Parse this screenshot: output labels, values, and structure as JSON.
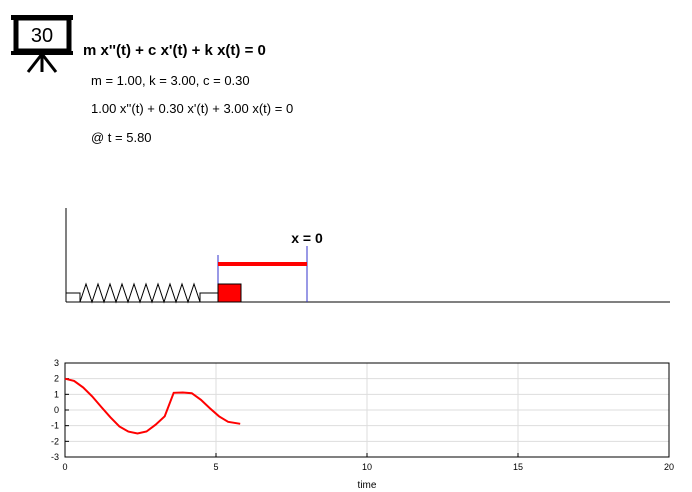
{
  "badge": {
    "value": "30",
    "icon": "presentation-board-icon"
  },
  "header": {
    "title": "m x''(t) + c x'(t) + k x(t) = 0",
    "params": "m = 1.00, k = 3.00, c = 0.30",
    "equation": "1.00 x''(t) + 0.30 x'(t) + 3.00 x(t) = 0",
    "time": "@ t = 5.80"
  },
  "sim": {
    "equilibrium_label": "x = 0",
    "mass_color": "#ff0000",
    "displacement_color": "#ff0000",
    "marker_color": "#3333cc"
  },
  "chart_data": {
    "type": "line",
    "xlabel": "time",
    "ylabel": "",
    "xlim": [
      0,
      20
    ],
    "ylim": [
      -3,
      3
    ],
    "xticks": [
      0,
      5,
      10,
      15,
      20
    ],
    "yticks": [
      -3,
      -2,
      -1,
      0,
      1,
      2,
      3
    ],
    "grid": true,
    "series": [
      {
        "color": "#ff0000",
        "x": [
          0,
          0.3,
          0.6,
          0.9,
          1.2,
          1.5,
          1.8,
          2.1,
          2.4,
          2.7,
          3.0,
          3.3,
          3.6,
          3.9,
          4.2,
          4.5,
          4.8,
          5.1,
          5.4,
          5.8
        ],
        "y": [
          2.0,
          1.86,
          1.44,
          0.87,
          0.2,
          -0.46,
          -1.05,
          -1.38,
          -1.5,
          -1.37,
          -0.94,
          -0.4,
          1.1,
          1.12,
          1.07,
          0.65,
          0.1,
          -0.4,
          -0.75,
          -0.88
        ]
      }
    ]
  }
}
